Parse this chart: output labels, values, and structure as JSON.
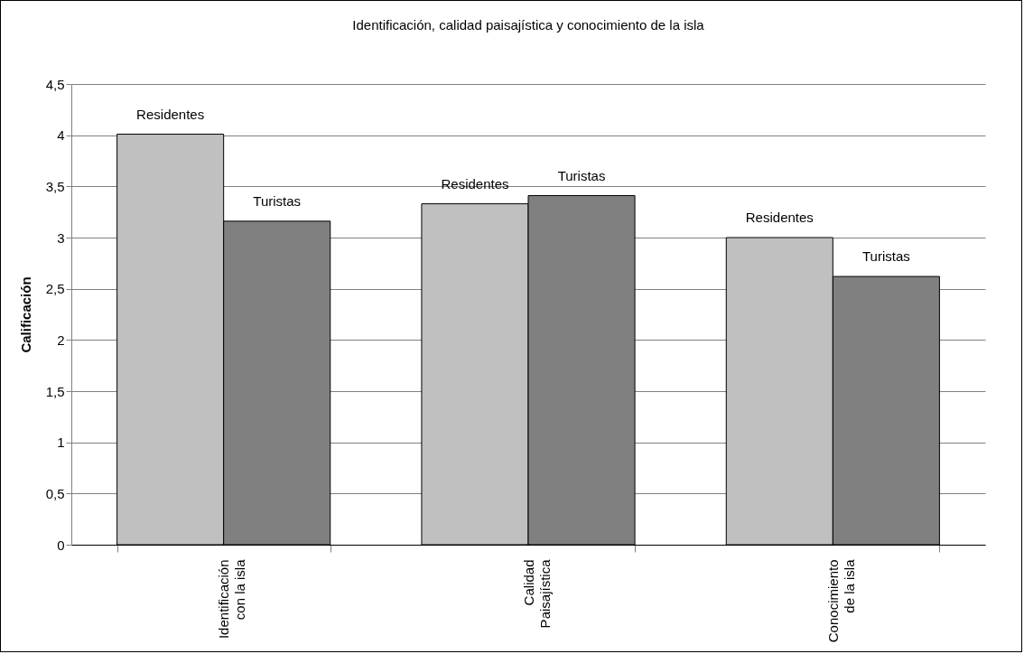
{
  "chart_data": {
    "type": "bar",
    "title": "Identificación, calidad paisajística y conocimiento de la isla",
    "ylabel": "Calificación",
    "categories": [
      "Identificación con la isla",
      "Calidad Paisajística",
      "Conocimiento de la isla"
    ],
    "series": [
      {
        "name": "Residentes",
        "color": "#c0c0c0",
        "values": [
          4.01,
          3.33,
          3.0
        ]
      },
      {
        "name": "Turistas",
        "color": "#808080",
        "values": [
          3.16,
          3.41,
          2.62
        ]
      }
    ],
    "ylim": [
      0,
      4.5
    ],
    "yticks": [
      0,
      {
        "value": 0.5,
        "label": "0,5"
      },
      1,
      {
        "value": 1.5,
        "label": "1,5"
      },
      2,
      {
        "value": 2.5,
        "label": "2,5"
      },
      3,
      {
        "value": 3.5,
        "label": "3,5"
      },
      4,
      {
        "value": 4.5,
        "label": "4,5"
      }
    ],
    "grid": "y",
    "legend": false
  }
}
